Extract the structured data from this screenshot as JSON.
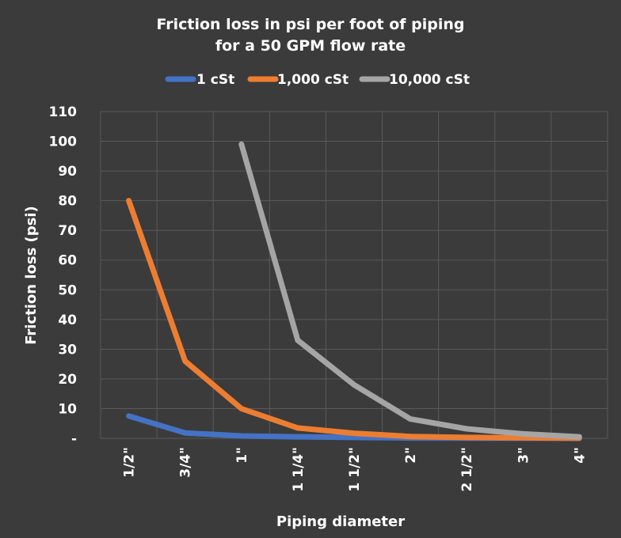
{
  "chart_data": {
    "type": "line",
    "title_lines": [
      "Friction loss in psi per foot of piping",
      "for a 50 GPM flow rate"
    ],
    "xlabel": "Piping diameter",
    "ylabel": "Friction loss (psi)",
    "categories": [
      "1/2\"",
      "3/4\"",
      "1\"",
      "1 1/4\"",
      "1 1/2\"",
      "2\"",
      "2 1/2\"",
      "3\"",
      "4\""
    ],
    "ylim": [
      0,
      110
    ],
    "yticks": [
      0,
      10,
      20,
      30,
      40,
      50,
      60,
      70,
      80,
      90,
      100,
      110
    ],
    "ytick_labels": [
      "-",
      "10",
      "20",
      "30",
      "40",
      "50",
      "60",
      "70",
      "80",
      "90",
      "100",
      "110"
    ],
    "grid": true,
    "legend_position": "top",
    "series": [
      {
        "name": "1 cSt",
        "color": "#4472c4",
        "values": [
          7.5,
          1.8,
          0.8,
          0.5,
          0.3,
          0.1,
          0.05,
          0.02,
          0.01
        ]
      },
      {
        "name": "1,000 cSt",
        "color": "#ed7d31",
        "values": [
          80,
          26,
          10,
          3.5,
          1.7,
          0.6,
          0.3,
          0.15,
          0.05
        ]
      },
      {
        "name": "10,000 cSt",
        "color": "#a5a5a5",
        "values": [
          null,
          null,
          99,
          33,
          18,
          6.5,
          3.2,
          1.5,
          0.5
        ]
      }
    ]
  }
}
